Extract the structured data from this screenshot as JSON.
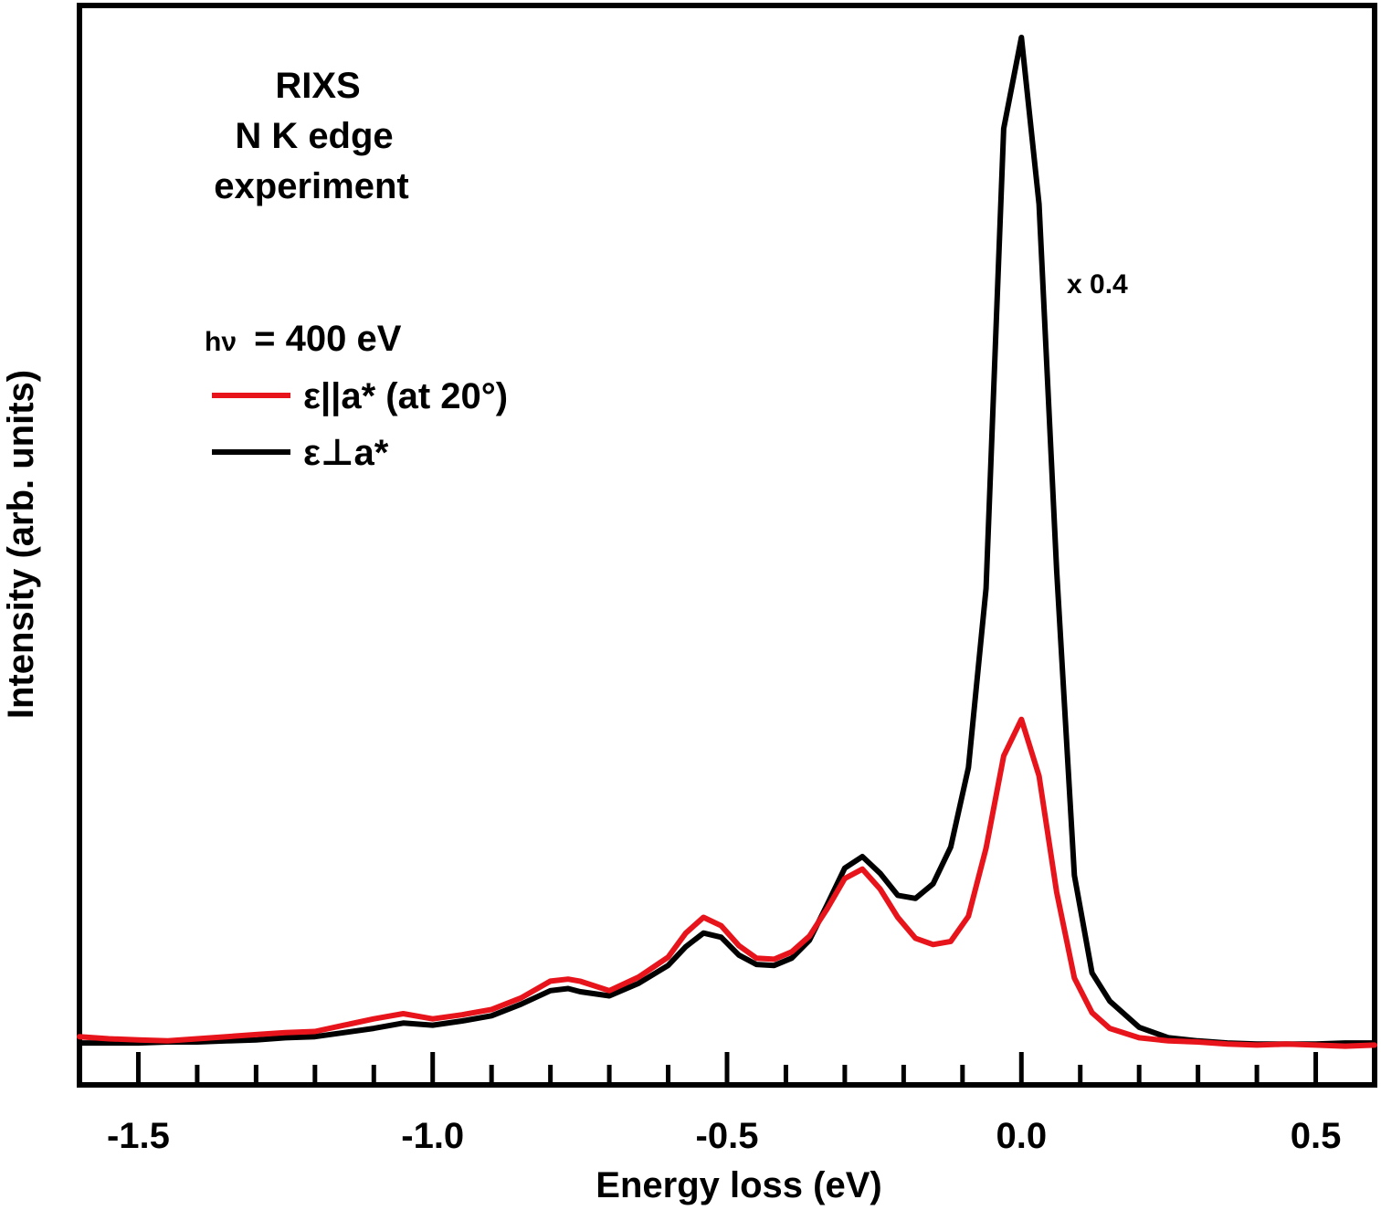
{
  "chart_data": {
    "type": "line",
    "xlabel": "Energy loss (eV)",
    "ylabel": "Intensity (arb. units)",
    "xlim": [
      -1.6,
      0.6
    ],
    "ylim": [
      0,
      1
    ],
    "x_ticks": [
      -1.5,
      -1.0,
      -0.5,
      0.0,
      0.5
    ],
    "x_tick_labels": [
      "-1.5",
      "-1.0",
      "-0.5",
      "0.0",
      "0.5"
    ],
    "x_minor_step": 0.1,
    "annotations": {
      "title_line1": "RIXS",
      "title_line2": "N K edge",
      "title_line3": "experiment",
      "scale_note": "x 0.4",
      "photon_energy_symbol": "hν",
      "photon_energy_value": "= 400 eV"
    },
    "series": [
      {
        "name": "ε||a* (at 20°)",
        "color": "#e8141b",
        "points": [
          [
            -1.6,
            0.046
          ],
          [
            -1.55,
            0.044
          ],
          [
            -1.5,
            0.043
          ],
          [
            -1.45,
            0.042
          ],
          [
            -1.4,
            0.044
          ],
          [
            -1.35,
            0.046
          ],
          [
            -1.3,
            0.048
          ],
          [
            -1.25,
            0.05
          ],
          [
            -1.2,
            0.051
          ],
          [
            -1.15,
            0.057
          ],
          [
            -1.1,
            0.063
          ],
          [
            -1.05,
            0.068
          ],
          [
            -1.0,
            0.063
          ],
          [
            -0.95,
            0.067
          ],
          [
            -0.9,
            0.072
          ],
          [
            -0.85,
            0.083
          ],
          [
            -0.8,
            0.099
          ],
          [
            -0.77,
            0.101
          ],
          [
            -0.75,
            0.099
          ],
          [
            -0.7,
            0.09
          ],
          [
            -0.65,
            0.103
          ],
          [
            -0.6,
            0.122
          ],
          [
            -0.57,
            0.145
          ],
          [
            -0.54,
            0.16
          ],
          [
            -0.51,
            0.152
          ],
          [
            -0.48,
            0.133
          ],
          [
            -0.45,
            0.121
          ],
          [
            -0.42,
            0.12
          ],
          [
            -0.39,
            0.127
          ],
          [
            -0.36,
            0.142
          ],
          [
            -0.33,
            0.168
          ],
          [
            -0.3,
            0.197
          ],
          [
            -0.27,
            0.206
          ],
          [
            -0.24,
            0.187
          ],
          [
            -0.21,
            0.16
          ],
          [
            -0.18,
            0.14
          ],
          [
            -0.15,
            0.134
          ],
          [
            -0.12,
            0.137
          ],
          [
            -0.09,
            0.161
          ],
          [
            -0.06,
            0.226
          ],
          [
            -0.03,
            0.314
          ],
          [
            0.0,
            0.349
          ],
          [
            0.03,
            0.295
          ],
          [
            0.06,
            0.184
          ],
          [
            0.09,
            0.102
          ],
          [
            0.12,
            0.069
          ],
          [
            0.15,
            0.054
          ],
          [
            0.2,
            0.045
          ],
          [
            0.25,
            0.042
          ],
          [
            0.3,
            0.041
          ],
          [
            0.35,
            0.039
          ],
          [
            0.4,
            0.038
          ],
          [
            0.45,
            0.039
          ],
          [
            0.5,
            0.038
          ],
          [
            0.55,
            0.037
          ],
          [
            0.6,
            0.038
          ]
        ]
      },
      {
        "name": "ε⊥a*",
        "color": "#000000",
        "points": [
          [
            -1.6,
            0.04
          ],
          [
            -1.55,
            0.04
          ],
          [
            -1.5,
            0.04
          ],
          [
            -1.45,
            0.041
          ],
          [
            -1.4,
            0.041
          ],
          [
            -1.35,
            0.042
          ],
          [
            -1.3,
            0.043
          ],
          [
            -1.25,
            0.045
          ],
          [
            -1.2,
            0.046
          ],
          [
            -1.15,
            0.05
          ],
          [
            -1.1,
            0.054
          ],
          [
            -1.05,
            0.059
          ],
          [
            -1.0,
            0.057
          ],
          [
            -0.95,
            0.061
          ],
          [
            -0.9,
            0.066
          ],
          [
            -0.85,
            0.077
          ],
          [
            -0.8,
            0.09
          ],
          [
            -0.77,
            0.092
          ],
          [
            -0.75,
            0.089
          ],
          [
            -0.7,
            0.085
          ],
          [
            -0.65,
            0.097
          ],
          [
            -0.6,
            0.114
          ],
          [
            -0.57,
            0.132
          ],
          [
            -0.54,
            0.145
          ],
          [
            -0.51,
            0.141
          ],
          [
            -0.48,
            0.124
          ],
          [
            -0.45,
            0.115
          ],
          [
            -0.42,
            0.114
          ],
          [
            -0.39,
            0.121
          ],
          [
            -0.36,
            0.138
          ],
          [
            -0.33,
            0.172
          ],
          [
            -0.3,
            0.207
          ],
          [
            -0.27,
            0.218
          ],
          [
            -0.24,
            0.202
          ],
          [
            -0.21,
            0.181
          ],
          [
            -0.18,
            0.178
          ],
          [
            -0.15,
            0.192
          ],
          [
            -0.12,
            0.227
          ],
          [
            -0.09,
            0.303
          ],
          [
            -0.06,
            0.474
          ],
          [
            -0.03,
            0.913
          ],
          [
            0.0,
            1.0
          ],
          [
            0.03,
            0.841
          ],
          [
            0.06,
            0.491
          ],
          [
            0.09,
            0.2
          ],
          [
            0.12,
            0.107
          ],
          [
            0.15,
            0.08
          ],
          [
            0.2,
            0.055
          ],
          [
            0.25,
            0.045
          ],
          [
            0.3,
            0.042
          ],
          [
            0.35,
            0.04
          ],
          [
            0.4,
            0.039
          ],
          [
            0.45,
            0.039
          ],
          [
            0.5,
            0.039
          ],
          [
            0.55,
            0.04
          ],
          [
            0.6,
            0.04
          ]
        ]
      }
    ]
  }
}
